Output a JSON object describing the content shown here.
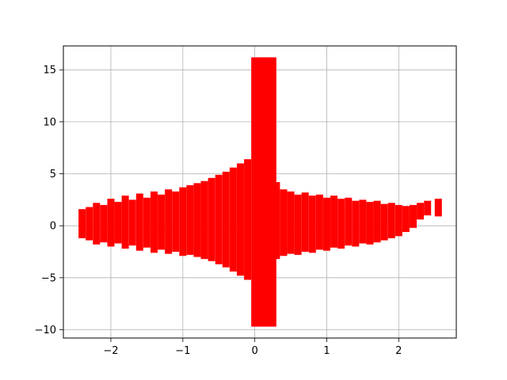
{
  "chart_data": {
    "type": "scatter",
    "title": "",
    "xlabel": "",
    "ylabel": "",
    "xlim": [
      -2.66,
      2.8
    ],
    "ylim": [
      -10.8,
      17.3
    ],
    "xticks": [
      -2,
      -1,
      0,
      1,
      2
    ],
    "xtick_labels": [
      "−2",
      "−1",
      "0",
      "1",
      "2"
    ],
    "yticks": [
      -10,
      -5,
      0,
      5,
      10,
      15
    ],
    "ytick_labels": [
      "−10",
      "−5",
      "0",
      "5",
      "10",
      "15"
    ],
    "grid": true,
    "series": [
      {
        "marker": "thick vertical error-bar style segments",
        "color": "#ff0000",
        "x": [
          -2.4,
          -2.3,
          -2.2,
          -2.1,
          -2.0,
          -1.9,
          -1.8,
          -1.7,
          -1.6,
          -1.5,
          -1.4,
          -1.3,
          -1.2,
          -1.1,
          -1.0,
          -0.9,
          -0.8,
          -0.7,
          -0.6,
          -0.5,
          -0.4,
          -0.3,
          -0.2,
          -0.1,
          0.0,
          0.05,
          0.1,
          0.15,
          0.2,
          0.25,
          0.3,
          0.4,
          0.5,
          0.6,
          0.7,
          0.8,
          0.9,
          1.0,
          1.1,
          1.2,
          1.3,
          1.4,
          1.5,
          1.6,
          1.7,
          1.8,
          1.9,
          2.0,
          2.1,
          2.2,
          2.3,
          2.4,
          2.55
        ],
        "y_low": [
          -1.2,
          -1.4,
          -1.8,
          -1.6,
          -2.0,
          -1.7,
          -2.2,
          -1.9,
          -2.4,
          -2.1,
          -2.6,
          -2.3,
          -2.7,
          -2.5,
          -2.9,
          -2.8,
          -3.0,
          -3.2,
          -3.4,
          -3.7,
          -4.0,
          -4.4,
          -4.8,
          -5.2,
          -9.7,
          -9.7,
          -9.7,
          -9.7,
          -9.7,
          -9.7,
          -3.2,
          -2.9,
          -2.7,
          -2.8,
          -2.5,
          -2.6,
          -2.3,
          -2.4,
          -2.1,
          -2.2,
          -1.9,
          -2.0,
          -1.7,
          -1.8,
          -1.6,
          -1.4,
          -1.2,
          -1.0,
          -0.6,
          -0.2,
          0.6,
          1.0,
          0.9
        ],
        "y_high": [
          1.6,
          1.8,
          2.2,
          2.0,
          2.6,
          2.3,
          2.9,
          2.5,
          3.1,
          2.7,
          3.3,
          3.0,
          3.5,
          3.3,
          3.7,
          3.9,
          4.1,
          4.3,
          4.6,
          4.9,
          5.2,
          5.6,
          6.0,
          6.4,
          16.2,
          16.2,
          16.2,
          16.2,
          16.2,
          16.2,
          4.2,
          3.5,
          3.3,
          3.0,
          3.2,
          2.9,
          3.0,
          2.7,
          2.9,
          2.6,
          2.7,
          2.4,
          2.5,
          2.3,
          2.4,
          2.1,
          2.2,
          2.0,
          1.9,
          2.0,
          2.2,
          2.4,
          2.6
        ]
      }
    ]
  }
}
